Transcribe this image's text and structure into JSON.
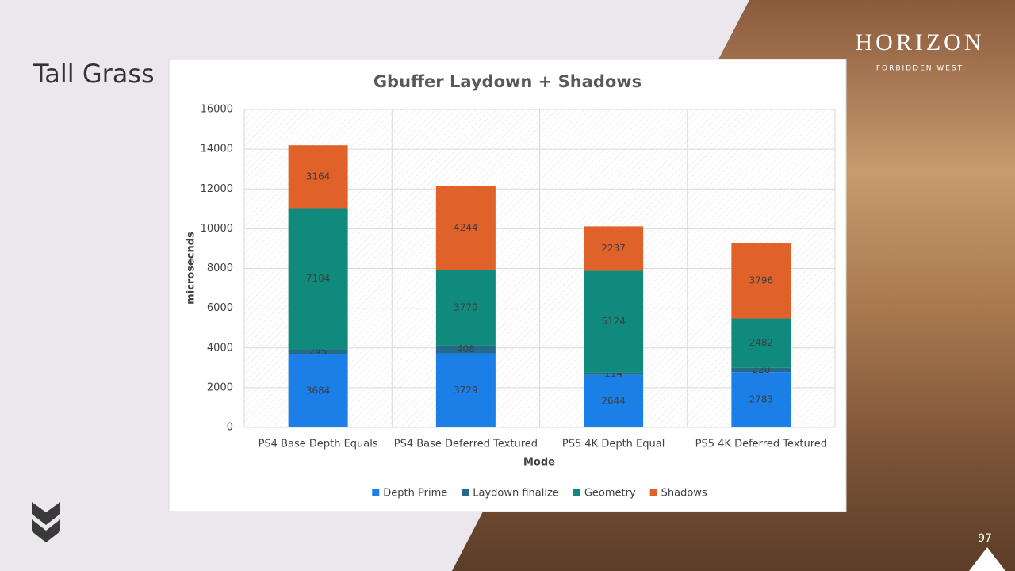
{
  "slide": {
    "title": "Tall Grass",
    "page_number": "97",
    "logo": {
      "title": "HORIZON",
      "subtitle": "FORBIDDEN WEST"
    }
  },
  "chart_data": {
    "type": "bar",
    "stacked": true,
    "title": "Gbuffer Laydown + Shadows",
    "x_label": "Mode",
    "y_label": "microsecnds",
    "categories": [
      "PS4 Base Depth Equals",
      "PS4 Base Deferred Textured",
      "PS5 4K Depth Equal",
      "PS5 4K Deferred Textured"
    ],
    "series": [
      {
        "name": "Depth Prime",
        "color": "#1a7fe6",
        "values": [
          3684,
          3729,
          2644,
          2783
        ]
      },
      {
        "name": "Laydown finalize",
        "color": "#236b8c",
        "values": [
          245,
          408,
          114,
          220
        ]
      },
      {
        "name": "Geometry",
        "color": "#0f8a7d",
        "values": [
          7104,
          3770,
          5124,
          2482
        ]
      },
      {
        "name": "Shadows",
        "color": "#e0622a",
        "values": [
          3164,
          4244,
          2237,
          3796
        ]
      }
    ],
    "ylim": [
      0,
      16000
    ],
    "yticks": [
      0,
      2000,
      4000,
      6000,
      8000,
      10000,
      12000,
      14000,
      16000
    ],
    "grid": true,
    "legend": "bottom",
    "data_labels": true
  }
}
